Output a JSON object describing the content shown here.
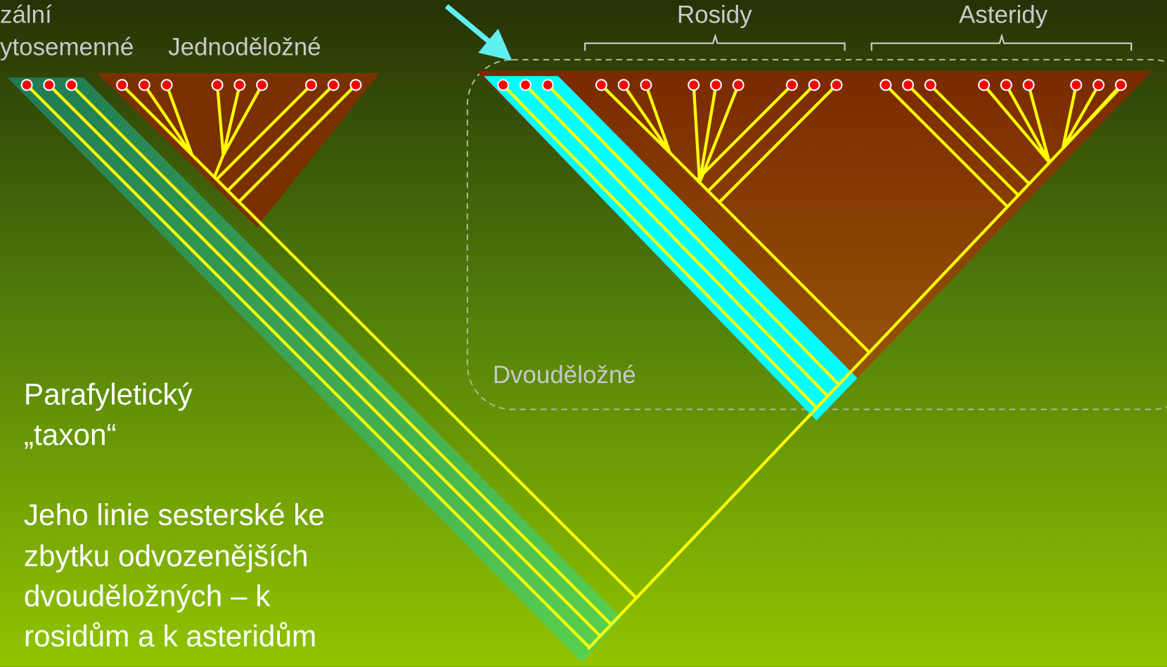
{
  "labels": {
    "basal": [
      "zální",
      "ytosemenné"
    ],
    "monocots": "Jednoděložné",
    "rosids": "Rosidy",
    "asterids": "Asteridy",
    "dicots": "Dvouděložné"
  },
  "note": {
    "title": [
      "Parafyletický",
      "„taxon“"
    ],
    "text": [
      "Jeho linie sesterské ke",
      "zbytku odvozenějších",
      "dvouděložných – k",
      "rosidům a k asteridům"
    ]
  }
}
